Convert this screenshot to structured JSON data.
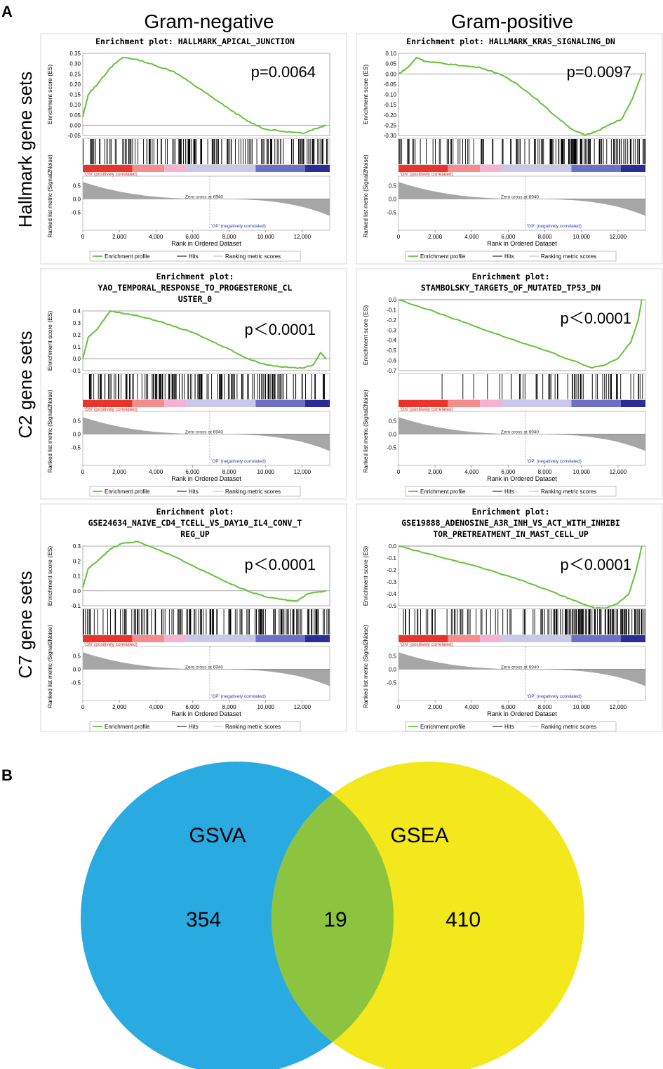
{
  "figure": {
    "panel_a_label": "A",
    "panel_b_label": "B",
    "columns": [
      "Gram-negative",
      "Gram-positive"
    ],
    "rows": [
      "Hallmark gene sets",
      "C2 gene sets",
      "C7 gene sets"
    ],
    "common": {
      "es_axis_label": "Enrichment score (ES)",
      "metric_axis_label": "Ranked list metric (Signal2Noise)",
      "x_axis_label": "Rank in Ordered Dataset",
      "pos_label": "'GN' (positively correlated)",
      "neg_label": "'GP' (negatively correlated)",
      "zero_cross_label": "Zero cross at 6940",
      "legend": [
        "Enrichment profile",
        "Hits",
        "Ranking metric scores"
      ],
      "x_ticks": [
        "0",
        "2,000",
        "4,000",
        "6,000",
        "8,000",
        "10,000",
        "12,000"
      ],
      "metric_ticks": [
        "0.5",
        "0.0",
        "-0.5"
      ]
    }
  },
  "colors": {
    "profile": "#66c23a",
    "venn_gsva": "#29abe2",
    "venn_gsea": "#f2e81c",
    "venn_overlap": "#8cc43f",
    "metric_fill": "#a6a6a6"
  },
  "chart_data": [
    {
      "type": "line",
      "panel": "A",
      "row": "Hallmark gene sets",
      "column": "Gram-negative",
      "title_lines": [
        "Enrichment plot: HALLMARK_APICAL_JUNCTION"
      ],
      "p_value": "p=0.0064",
      "xlim": [
        0,
        13500
      ],
      "ylim": [
        -0.05,
        0.35
      ],
      "y_ticks": [
        "0.35",
        "0.30",
        "0.25",
        "0.20",
        "0.15",
        "0.10",
        "0.05",
        "0.00",
        "-0.05"
      ],
      "es_x": [
        0,
        300,
        800,
        1500,
        2200,
        3000,
        4000,
        5000,
        6000,
        7000,
        8000,
        9000,
        10000,
        11000,
        12000,
        12600,
        13300
      ],
      "es_y": [
        0.04,
        0.15,
        0.2,
        0.28,
        0.33,
        0.32,
        0.29,
        0.26,
        0.2,
        0.14,
        0.08,
        0.02,
        -0.02,
        -0.03,
        -0.04,
        -0.02,
        0.0
      ]
    },
    {
      "type": "line",
      "panel": "A",
      "row": "Hallmark gene sets",
      "column": "Gram-positive",
      "title_lines": [
        "Enrichment plot: HALLMARK_KRAS_SIGNALING_DN"
      ],
      "p_value": "p=0.0097",
      "xlim": [
        0,
        13500
      ],
      "ylim": [
        -0.3,
        0.1
      ],
      "y_ticks": [
        "0.10",
        "0.05",
        "0.00",
        "-0.05",
        "-0.10",
        "-0.15",
        "-0.20",
        "-0.25",
        "-0.30"
      ],
      "es_x": [
        0,
        500,
        1000,
        1500,
        2500,
        3500,
        4500,
        5500,
        6500,
        7500,
        8500,
        9500,
        10200,
        10800,
        11500,
        12200,
        12800,
        13300
      ],
      "es_y": [
        0.0,
        0.03,
        0.08,
        0.06,
        0.05,
        0.04,
        0.03,
        0.0,
        -0.05,
        -0.12,
        -0.2,
        -0.27,
        -0.3,
        -0.28,
        -0.25,
        -0.22,
        -0.12,
        0.0
      ]
    },
    {
      "type": "line",
      "panel": "A",
      "row": "C2 gene sets",
      "column": "Gram-negative",
      "title_lines": [
        "Enrichment plot:",
        "YAO_TEMPORAL_RESPONSE_TO_PROGESTERONE_CL",
        "USTER_0"
      ],
      "p_value": "p＜0.0001",
      "xlim": [
        0,
        13500
      ],
      "ylim": [
        -0.1,
        0.4
      ],
      "y_ticks": [
        "0.4",
        "0.3",
        "0.2",
        "0.1",
        "0.0",
        "-0.1"
      ],
      "es_x": [
        0,
        300,
        800,
        1500,
        2200,
        3000,
        4000,
        5000,
        6000,
        7000,
        8000,
        9000,
        10000,
        11000,
        12000,
        12600,
        13000,
        13300
      ],
      "es_y": [
        0.0,
        0.18,
        0.25,
        0.4,
        0.38,
        0.36,
        0.32,
        0.27,
        0.22,
        0.15,
        0.08,
        0.0,
        -0.05,
        -0.07,
        -0.08,
        -0.05,
        0.05,
        0.0
      ]
    },
    {
      "type": "line",
      "panel": "A",
      "row": "C2 gene sets",
      "column": "Gram-positive",
      "title_lines": [
        "Enrichment plot:",
        "STAMBOLSKY_TARGETS_OF_MUTATED_TP53_DN"
      ],
      "p_value": "p＜0.0001",
      "xlim": [
        0,
        13500
      ],
      "ylim": [
        -0.7,
        0.0
      ],
      "y_ticks": [
        "0.0",
        "-0.1",
        "-0.2",
        "-0.3",
        "-0.4",
        "-0.5",
        "-0.6",
        "-0.7"
      ],
      "es_x": [
        0,
        2000,
        4000,
        6000,
        8000,
        9500,
        10500,
        11200,
        12000,
        12700,
        13100,
        13300
      ],
      "es_y": [
        0.0,
        -0.12,
        -0.25,
        -0.38,
        -0.5,
        -0.6,
        -0.67,
        -0.65,
        -0.58,
        -0.42,
        -0.2,
        0.0
      ]
    },
    {
      "type": "line",
      "panel": "A",
      "row": "C7 gene sets",
      "column": "Gram-negative",
      "title_lines": [
        "Enrichment plot:",
        "GSE24634_NAIVE_CD4_TCELL_VS_DAY10_IL4_CONV_T",
        "REG_UP"
      ],
      "p_value": "p＜0.0001",
      "xlim": [
        0,
        13500
      ],
      "ylim": [
        -0.1,
        0.3
      ],
      "y_ticks": [
        "0.3",
        "0.2",
        "0.1",
        "0.0",
        "-0.1"
      ],
      "es_x": [
        0,
        300,
        800,
        1500,
        2200,
        3000,
        4000,
        5000,
        6000,
        7000,
        8000,
        9000,
        10000,
        11000,
        11700,
        12300,
        13300
      ],
      "es_y": [
        0.02,
        0.15,
        0.2,
        0.28,
        0.32,
        0.33,
        0.28,
        0.23,
        0.17,
        0.11,
        0.05,
        0.0,
        -0.04,
        -0.06,
        -0.07,
        -0.02,
        0.0
      ]
    },
    {
      "type": "line",
      "panel": "A",
      "row": "C7 gene sets",
      "column": "Gram-positive",
      "title_lines": [
        "Enrichment plot:",
        "GSE19888_ADENOSINE_A3R_INH_VS_ACT_WITH_INHIBI",
        "TOR_PRETREATMENT_IN_MAST_CELL_UP"
      ],
      "p_value": "p＜0.0001",
      "xlim": [
        0,
        13500
      ],
      "ylim": [
        -0.5,
        0.0
      ],
      "y_ticks": [
        "0.0",
        "-0.1",
        "-0.2",
        "-0.3",
        "-0.4",
        "-0.5"
      ],
      "es_x": [
        0,
        1500,
        3000,
        4500,
        6000,
        7500,
        9000,
        10000,
        10700,
        11300,
        12000,
        12600,
        13000,
        13300
      ],
      "es_y": [
        0.0,
        -0.06,
        -0.12,
        -0.18,
        -0.25,
        -0.33,
        -0.42,
        -0.48,
        -0.52,
        -0.52,
        -0.48,
        -0.4,
        -0.2,
        0.0
      ]
    },
    {
      "type": "venn",
      "panel": "B",
      "sets": [
        {
          "name": "GSVA",
          "only": "354"
        },
        {
          "name": "GSEA",
          "only": "410"
        }
      ],
      "intersection": "19"
    }
  ]
}
